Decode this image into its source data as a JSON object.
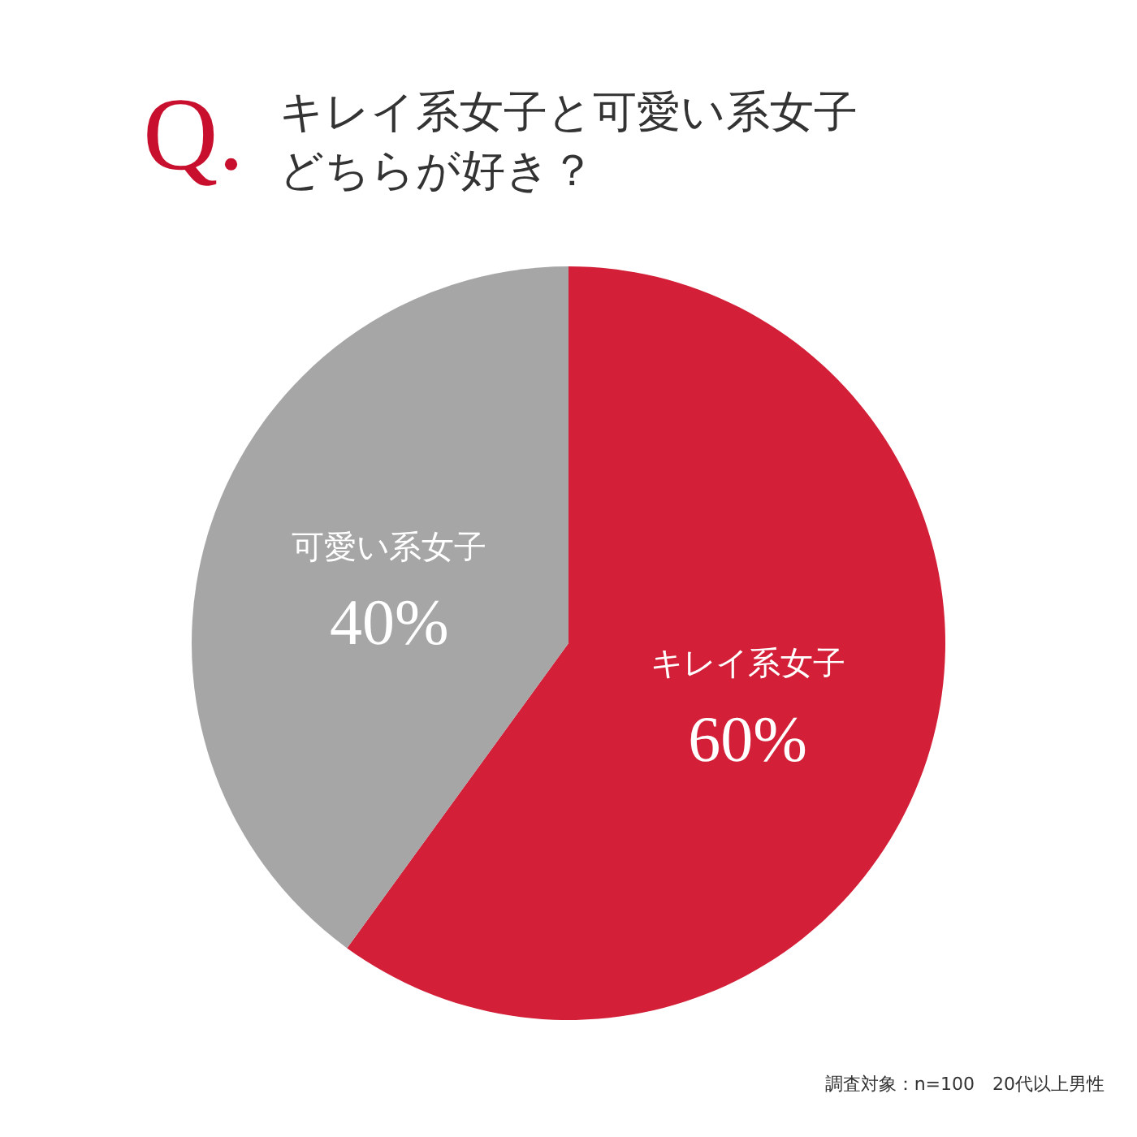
{
  "chart_data": {
    "type": "pie",
    "title": "キレイ系女子と可愛い系女子どちらが好き？",
    "categories": [
      "キレイ系女子",
      "可愛い系女子"
    ],
    "values": [
      60,
      40
    ],
    "colors": [
      "#d31f37",
      "#a6a6a6"
    ],
    "value_labels": [
      "60%",
      "40%"
    ],
    "legend": false,
    "annotations": [
      "Q.",
      "調査対象：n=100　20代以上男性"
    ]
  }
}
